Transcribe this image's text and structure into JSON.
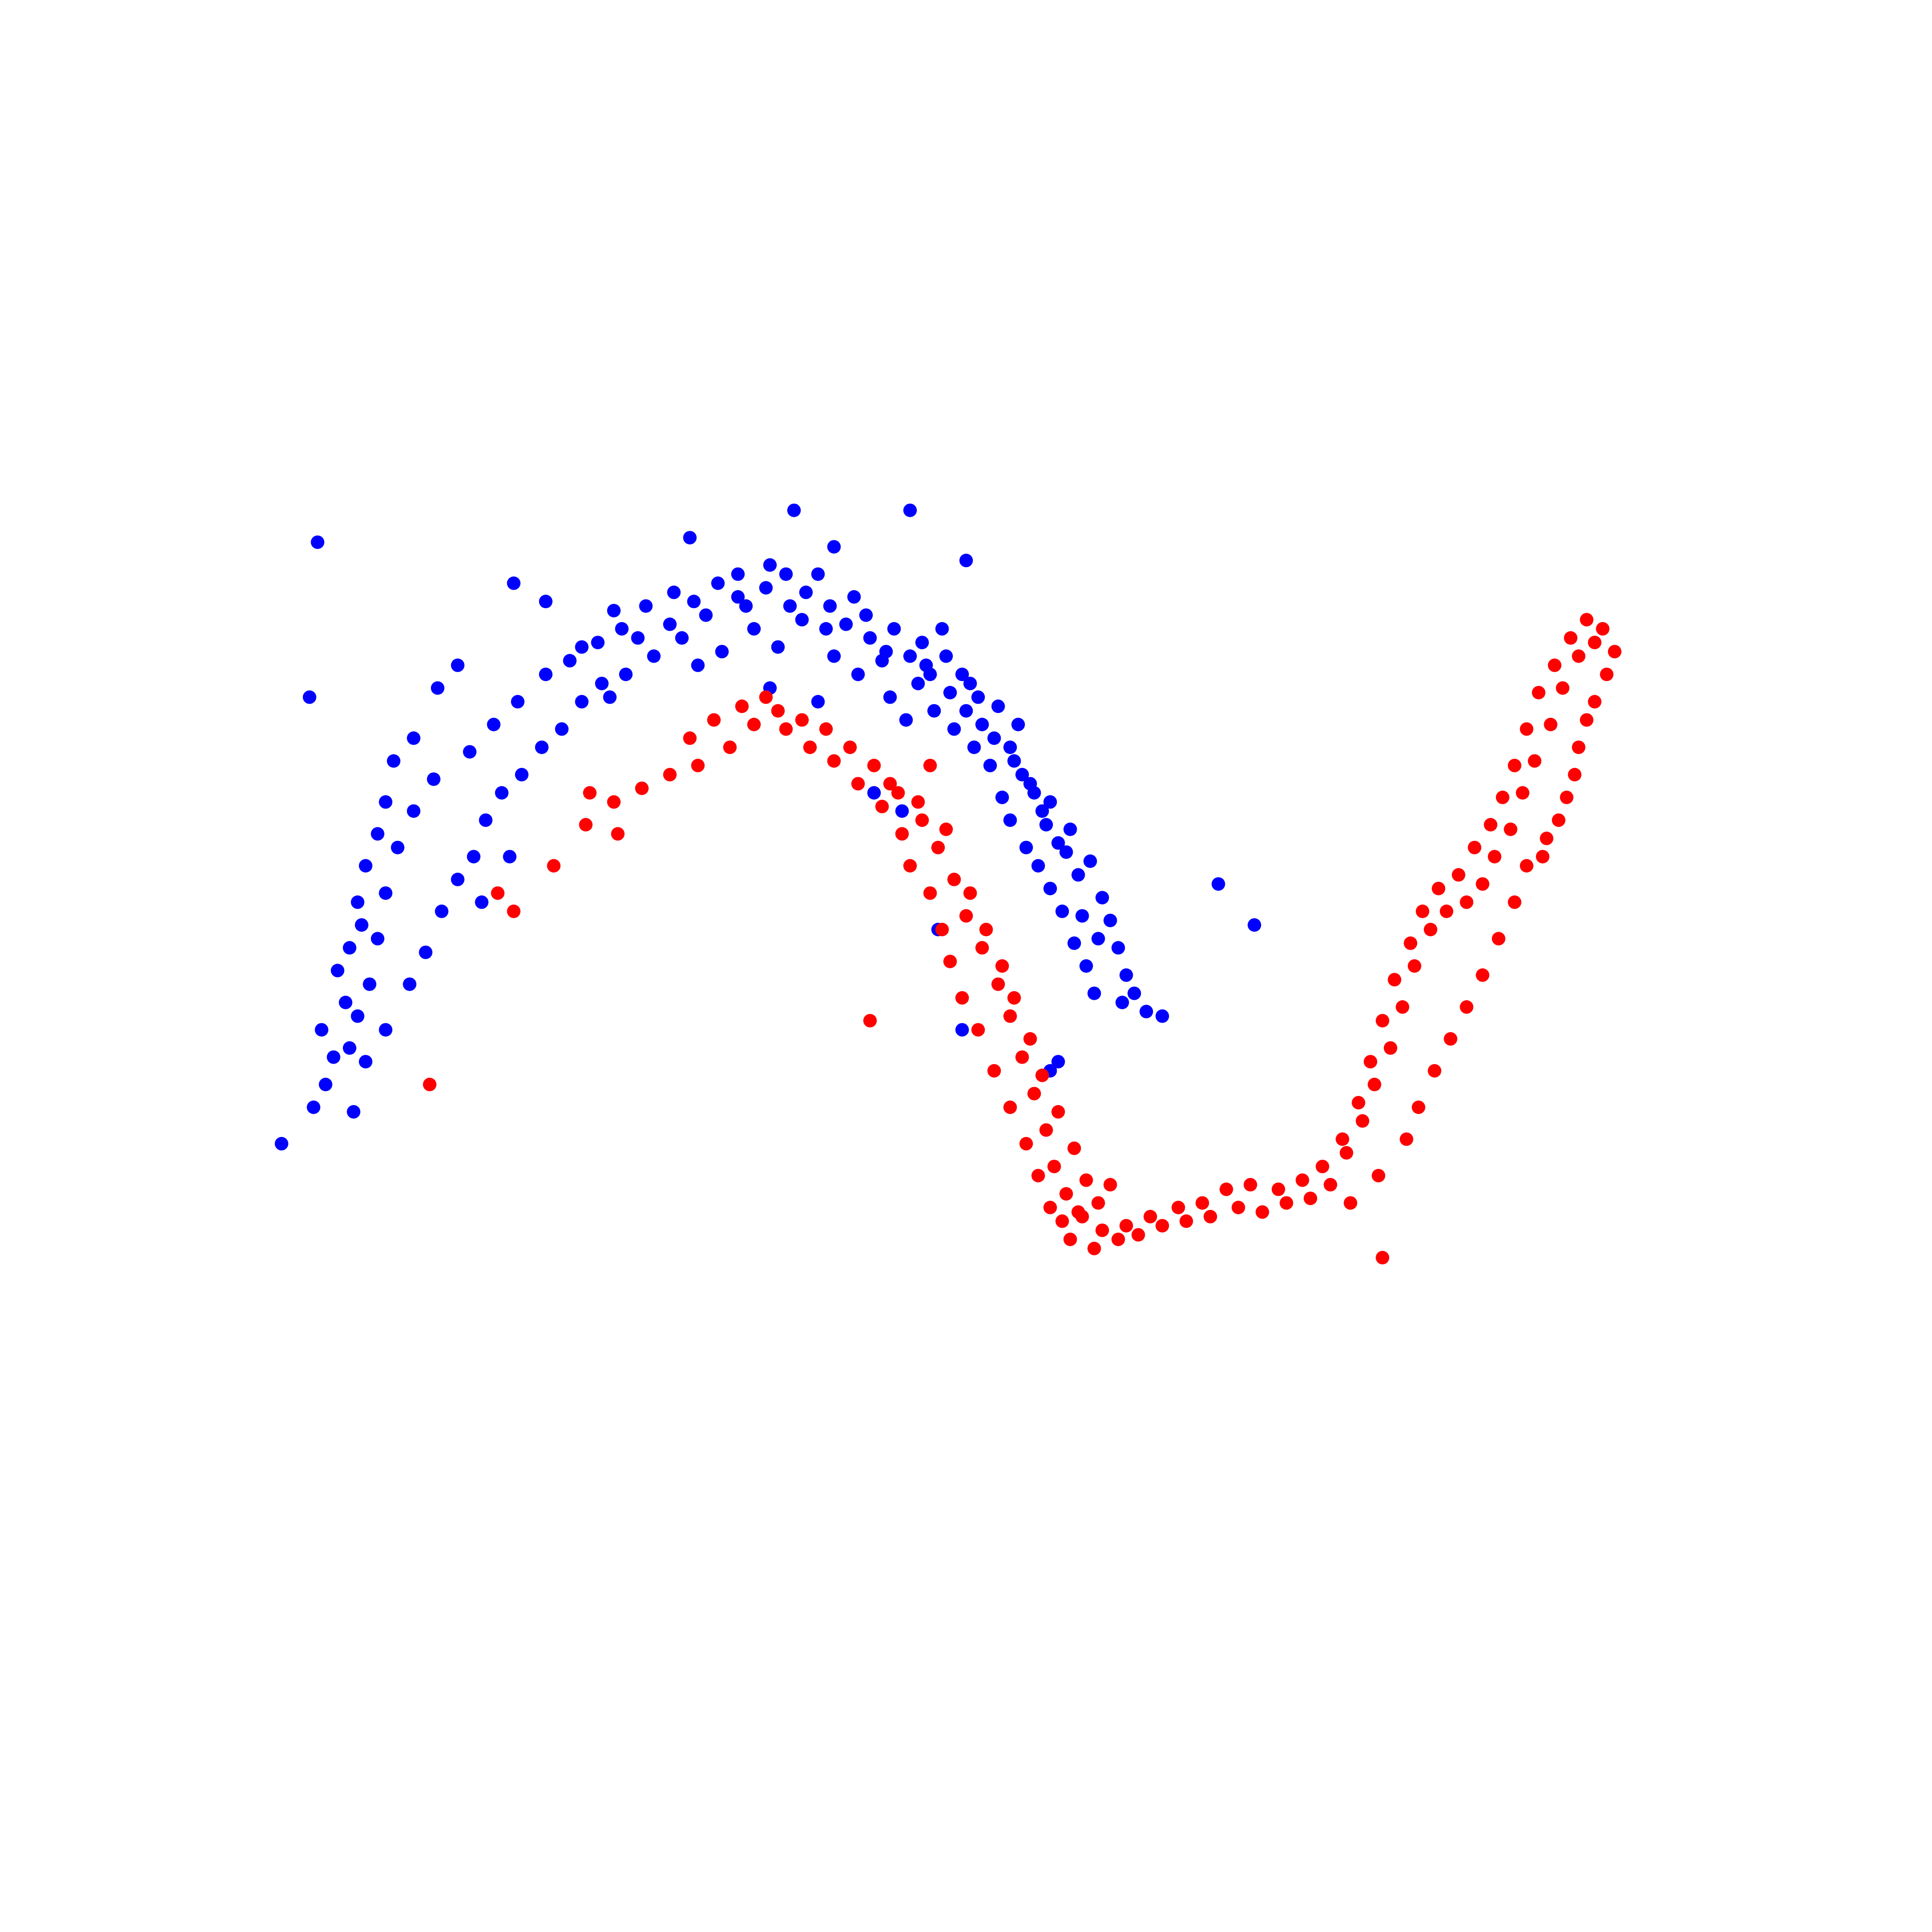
{
  "chart_data": {
    "type": "scatter",
    "title": "",
    "xlabel": "",
    "ylabel": "",
    "axes_visible": false,
    "grid": false,
    "xlim": [
      -1.22,
      2.52
    ],
    "ylim": [
      -1.33,
      1.85
    ],
    "series": [
      {
        "color": "#0000ff",
        "points": [
          [
            -0.54,
            1.1
          ],
          [
            -0.37,
            0.96
          ],
          [
            -0.46,
            1.06
          ],
          [
            -0.29,
            1.04
          ],
          [
            -0.14,
            1.08
          ],
          [
            -0.23,
            0.98
          ],
          [
            -0.06,
            1.03
          ],
          [
            0.02,
            1.12
          ],
          [
            0.02,
            1.07
          ],
          [
            0.1,
            1.14
          ],
          [
            0.15,
            1.05
          ],
          [
            0.22,
            1.12
          ],
          [
            0.24,
            1.0
          ],
          [
            0.31,
            1.07
          ],
          [
            0.35,
            0.98
          ],
          [
            0.39,
            0.95
          ],
          [
            0.38,
            0.93
          ],
          [
            0.48,
            0.97
          ],
          [
            0.53,
            1.0
          ],
          [
            0.49,
            0.92
          ],
          [
            0.54,
            0.94
          ],
          [
            0.58,
            0.9
          ],
          [
            0.62,
            0.85
          ],
          [
            0.6,
            0.88
          ],
          [
            0.67,
            0.83
          ],
          [
            0.72,
            0.79
          ],
          [
            0.7,
            0.74
          ],
          [
            0.73,
            0.68
          ],
          [
            0.75,
            0.66
          ],
          [
            0.8,
            0.62
          ],
          [
            0.78,
            0.6
          ],
          [
            0.85,
            0.56
          ],
          [
            0.84,
            0.51
          ],
          [
            0.9,
            0.49
          ],
          [
            0.93,
            0.41
          ],
          [
            0.95,
            0.36
          ],
          [
            0.97,
            0.3
          ],
          [
            0.99,
            0.24
          ],
          [
            1.01,
            0.2
          ],
          [
            0.98,
            0.18
          ],
          [
            1.04,
            0.16
          ],
          [
            1.08,
            0.15
          ],
          [
            -0.84,
            0.71
          ],
          [
            -0.86,
            0.62
          ],
          [
            -0.88,
            0.55
          ],
          [
            -0.91,
            0.48
          ],
          [
            -0.93,
            0.4
          ],
          [
            -0.92,
            0.35
          ],
          [
            -0.95,
            0.3
          ],
          [
            -0.98,
            0.25
          ],
          [
            -0.96,
            0.18
          ],
          [
            -1.02,
            0.12
          ],
          [
            -0.99,
            0.06
          ],
          [
            -1.01,
            0.0
          ],
          [
            -1.04,
            -0.05
          ],
          [
            -0.94,
            -0.06
          ],
          [
            -0.91,
            0.05
          ],
          [
            -0.86,
            0.12
          ],
          [
            -0.8,
            0.22
          ],
          [
            -0.76,
            0.29
          ],
          [
            -0.72,
            0.38
          ],
          [
            -0.68,
            0.45
          ],
          [
            -0.64,
            0.5
          ],
          [
            -0.61,
            0.58
          ],
          [
            -0.57,
            0.64
          ],
          [
            -0.52,
            0.68
          ],
          [
            -0.47,
            0.74
          ],
          [
            -0.42,
            0.78
          ],
          [
            -0.37,
            0.84
          ],
          [
            -0.32,
            0.88
          ],
          [
            -0.26,
            0.9
          ],
          [
            -0.19,
            0.94
          ],
          [
            -0.12,
            0.98
          ],
          [
            -0.08,
            0.92
          ],
          [
            -0.02,
            0.95
          ],
          [
            0.06,
            1.0
          ],
          [
            0.12,
            0.96
          ],
          [
            0.18,
            1.02
          ],
          [
            0.26,
            0.94
          ],
          [
            0.32,
            0.9
          ],
          [
            0.4,
            0.85
          ],
          [
            0.44,
            0.8
          ],
          [
            0.47,
            0.88
          ],
          [
            0.51,
            0.82
          ],
          [
            0.56,
            0.78
          ],
          [
            0.61,
            0.74
          ],
          [
            0.65,
            0.7
          ],
          [
            0.68,
            0.63
          ],
          [
            0.7,
            0.58
          ],
          [
            0.74,
            0.52
          ],
          [
            0.77,
            0.48
          ],
          [
            0.8,
            0.43
          ],
          [
            0.83,
            0.38
          ],
          [
            0.86,
            0.31
          ],
          [
            0.89,
            0.26
          ],
          [
            0.91,
            0.2
          ],
          [
            -0.74,
            0.67
          ],
          [
            -0.79,
            0.6
          ],
          [
            -0.83,
            0.52
          ],
          [
            -0.86,
            0.42
          ],
          [
            -0.88,
            0.32
          ],
          [
            -0.9,
            0.22
          ],
          [
            -0.93,
            0.15
          ],
          [
            -0.95,
            0.08
          ],
          [
            -0.65,
            0.73
          ],
          [
            -0.59,
            0.79
          ],
          [
            -0.53,
            0.84
          ],
          [
            -0.46,
            0.9
          ],
          [
            -0.4,
            0.93
          ],
          [
            -0.33,
            0.97
          ],
          [
            -0.27,
            1.0
          ],
          [
            -0.21,
            1.05
          ],
          [
            -0.15,
            1.01
          ],
          [
            -0.09,
            1.06
          ],
          [
            -0.03,
            1.1
          ],
          [
            0.04,
            1.05
          ],
          [
            0.09,
            1.09
          ],
          [
            0.14,
            1.12
          ],
          [
            0.19,
            1.08
          ],
          [
            0.25,
            1.05
          ],
          [
            0.29,
            1.01
          ],
          [
            0.34,
            1.03
          ],
          [
            0.41,
            1.0
          ],
          [
            0.45,
            0.94
          ],
          [
            0.5,
            0.9
          ],
          [
            0.55,
            0.86
          ],
          [
            0.59,
            0.82
          ],
          [
            0.63,
            0.79
          ],
          [
            0.66,
            0.76
          ],
          [
            0.71,
            0.71
          ],
          [
            0.76,
            0.64
          ],
          [
            0.79,
            0.57
          ],
          [
            0.82,
            0.53
          ],
          [
            0.87,
            0.46
          ],
          [
            0.88,
            0.37
          ],
          [
            0.92,
            0.32
          ],
          [
            -1.12,
            -0.13
          ],
          [
            -1.05,
            0.85
          ],
          [
            -1.03,
            1.19
          ],
          [
            -0.68,
            0.92
          ],
          [
            0.16,
            1.26
          ],
          [
            -0.1,
            1.2
          ],
          [
            0.26,
            1.18
          ],
          [
            0.45,
            1.26
          ],
          [
            0.59,
            1.15
          ],
          [
            0.52,
            0.34
          ],
          [
            0.58,
            0.12
          ],
          [
            0.36,
            0.64
          ],
          [
            0.22,
            0.84
          ],
          [
            -0.55,
            0.5
          ],
          [
            0.82,
            0.05
          ],
          [
            0.8,
            0.03
          ],
          [
            1.22,
            0.44
          ],
          [
            1.31,
            0.35
          ],
          [
            -0.73,
            0.87
          ],
          [
            -0.79,
            0.76
          ],
          [
            -0.62,
            0.4
          ],
          [
            -0.3,
            0.85
          ],
          [
            0.1,
            0.87
          ],
          [
            0.43,
            0.6
          ]
        ]
      },
      {
        "color": "#ff0000",
        "points": [
          [
            -0.44,
            0.48
          ],
          [
            -0.36,
            0.57
          ],
          [
            -0.29,
            0.62
          ],
          [
            -0.22,
            0.65
          ],
          [
            -0.15,
            0.68
          ],
          [
            -0.08,
            0.7
          ],
          [
            0.0,
            0.74
          ],
          [
            0.06,
            0.79
          ],
          [
            0.12,
            0.82
          ],
          [
            0.18,
            0.8
          ],
          [
            0.24,
            0.78
          ],
          [
            0.3,
            0.74
          ],
          [
            0.36,
            0.7
          ],
          [
            0.42,
            0.64
          ],
          [
            0.48,
            0.58
          ],
          [
            0.52,
            0.52
          ],
          [
            0.56,
            0.45
          ],
          [
            0.59,
            0.37
          ],
          [
            0.63,
            0.3
          ],
          [
            0.67,
            0.22
          ],
          [
            0.7,
            0.15
          ],
          [
            0.73,
            0.06
          ],
          [
            0.76,
            -0.02
          ],
          [
            0.79,
            -0.1
          ],
          [
            0.81,
            -0.18
          ],
          [
            0.84,
            -0.24
          ],
          [
            0.88,
            -0.29
          ],
          [
            0.93,
            -0.32
          ],
          [
            0.99,
            -0.31
          ],
          [
            1.05,
            -0.29
          ],
          [
            1.12,
            -0.27
          ],
          [
            1.18,
            -0.26
          ],
          [
            1.24,
            -0.23
          ],
          [
            1.3,
            -0.22
          ],
          [
            1.37,
            -0.23
          ],
          [
            1.43,
            -0.21
          ],
          [
            1.48,
            -0.18
          ],
          [
            1.53,
            -0.12
          ],
          [
            1.57,
            -0.04
          ],
          [
            1.6,
            0.05
          ],
          [
            1.63,
            0.14
          ],
          [
            1.66,
            0.23
          ],
          [
            1.7,
            0.31
          ],
          [
            1.73,
            0.38
          ],
          [
            1.77,
            0.43
          ],
          [
            1.82,
            0.46
          ],
          [
            1.86,
            0.52
          ],
          [
            1.9,
            0.57
          ],
          [
            1.93,
            0.63
          ],
          [
            1.96,
            0.7
          ],
          [
            1.99,
            0.78
          ],
          [
            2.02,
            0.86
          ],
          [
            2.06,
            0.92
          ],
          [
            2.1,
            0.98
          ],
          [
            2.14,
            1.02
          ],
          [
            2.18,
            1.0
          ],
          [
            2.21,
            0.95
          ],
          [
            2.16,
            0.84
          ],
          [
            2.12,
            0.74
          ],
          [
            2.09,
            0.63
          ],
          [
            2.04,
            0.54
          ],
          [
            1.99,
            0.48
          ],
          [
            1.96,
            0.4
          ],
          [
            1.92,
            0.32
          ],
          [
            1.88,
            0.24
          ],
          [
            1.84,
            0.17
          ],
          [
            1.8,
            0.1
          ],
          [
            1.76,
            0.03
          ],
          [
            1.72,
            -0.05
          ],
          [
            1.69,
            -0.12
          ],
          [
            1.62,
            -0.2
          ],
          [
            1.55,
            -0.26
          ],
          [
            -0.1,
            0.76
          ],
          [
            -0.04,
            0.8
          ],
          [
            0.03,
            0.83
          ],
          [
            0.09,
            0.85
          ],
          [
            0.14,
            0.78
          ],
          [
            0.2,
            0.74
          ],
          [
            0.26,
            0.71
          ],
          [
            0.32,
            0.66
          ],
          [
            0.38,
            0.61
          ],
          [
            0.43,
            0.55
          ],
          [
            0.45,
            0.48
          ],
          [
            0.5,
            0.42
          ],
          [
            0.53,
            0.34
          ],
          [
            0.55,
            0.27
          ],
          [
            0.58,
            0.19
          ],
          [
            0.62,
            0.12
          ],
          [
            0.66,
            0.03
          ],
          [
            0.7,
            -0.05
          ],
          [
            0.74,
            -0.13
          ],
          [
            0.77,
            -0.2
          ],
          [
            0.8,
            -0.27
          ],
          [
            0.85,
            -0.34
          ],
          [
            0.91,
            -0.36
          ],
          [
            0.97,
            -0.34
          ],
          [
            1.02,
            -0.33
          ],
          [
            1.08,
            -0.31
          ],
          [
            1.14,
            -0.3
          ],
          [
            1.2,
            -0.29
          ],
          [
            1.27,
            -0.27
          ],
          [
            1.33,
            -0.28
          ],
          [
            1.39,
            -0.26
          ],
          [
            1.45,
            -0.25
          ],
          [
            1.5,
            -0.22
          ],
          [
            1.54,
            -0.15
          ],
          [
            1.58,
            -0.08
          ],
          [
            1.61,
            0.0
          ],
          [
            1.65,
            0.08
          ],
          [
            1.68,
            0.17
          ],
          [
            1.71,
            0.26
          ],
          [
            1.75,
            0.34
          ],
          [
            1.79,
            0.38
          ],
          [
            1.84,
            0.4
          ],
          [
            1.88,
            0.44
          ],
          [
            1.91,
            0.5
          ],
          [
            1.95,
            0.56
          ],
          [
            1.98,
            0.64
          ],
          [
            2.01,
            0.71
          ],
          [
            2.05,
            0.79
          ],
          [
            2.08,
            0.87
          ],
          [
            2.12,
            0.94
          ],
          [
            2.16,
            0.97
          ],
          [
            2.19,
            0.9
          ],
          [
            2.14,
            0.8
          ],
          [
            2.11,
            0.68
          ],
          [
            2.07,
            0.58
          ],
          [
            2.03,
            0.5
          ],
          [
            0.4,
            0.66
          ],
          [
            0.47,
            0.62
          ],
          [
            0.54,
            0.56
          ],
          [
            0.6,
            0.42
          ],
          [
            0.64,
            0.34
          ],
          [
            0.68,
            0.26
          ],
          [
            0.71,
            0.19
          ],
          [
            0.75,
            0.1
          ],
          [
            0.78,
            0.02
          ],
          [
            0.82,
            -0.06
          ],
          [
            0.86,
            -0.14
          ],
          [
            0.89,
            -0.21
          ],
          [
            0.87,
            -0.28
          ],
          [
            0.92,
            -0.26
          ],
          [
            0.95,
            -0.22
          ],
          [
            0.83,
            -0.3
          ],
          [
            -0.75,
            0.0
          ],
          [
            -0.58,
            0.42
          ],
          [
            -0.54,
            0.38
          ],
          [
            0.35,
            0.14
          ],
          [
            1.63,
            -0.38
          ],
          [
            -0.35,
            0.64
          ],
          [
            -0.28,
            0.55
          ],
          [
            0.5,
            0.7
          ]
        ]
      }
    ]
  }
}
